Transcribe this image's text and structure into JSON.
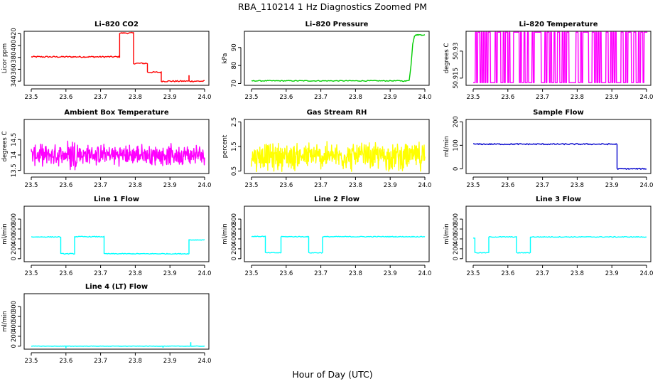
{
  "figure": {
    "title": "RBA_110214  1 Hz Diagnostics Zoomed PM",
    "xlabel": "Hour of Day (UTC)"
  },
  "chart_data": [
    {
      "type": "line",
      "id": "co2",
      "title": "Li–820 CO2",
      "ylabel": "Licor ppm",
      "color": "#ff0000",
      "xlim": [
        23.5,
        24.0
      ],
      "ylim": [
        333,
        424
      ],
      "xticks": [
        23.5,
        23.6,
        23.7,
        23.8,
        23.9,
        24.0
      ],
      "yticks": [
        340,
        360,
        380,
        400,
        420
      ],
      "mode": "steps",
      "noise": 1.2,
      "segments": [
        [
          23.5,
          23.755,
          381
        ],
        [
          23.755,
          23.795,
          421
        ],
        [
          23.795,
          23.835,
          370
        ],
        [
          23.835,
          23.875,
          355
        ],
        [
          23.875,
          24.0,
          340
        ]
      ],
      "spikes": [
        [
          23.955,
          350
        ]
      ]
    },
    {
      "type": "line",
      "id": "pressure",
      "title": "Li–820 Pressure",
      "ylabel": "kPa",
      "color": "#00cc00",
      "xlim": [
        23.5,
        24.0
      ],
      "ylim": [
        69,
        99
      ],
      "xticks": [
        23.5,
        23.6,
        23.7,
        23.8,
        23.9,
        24.0
      ],
      "yticks": [
        70,
        80,
        90
      ],
      "mode": "points",
      "x": [
        23.5,
        23.93,
        23.945,
        23.955,
        23.96,
        23.965,
        23.97,
        23.975,
        23.98,
        23.99,
        24.0
      ],
      "y": [
        71.5,
        71.5,
        71.3,
        72,
        80,
        92,
        96.5,
        97,
        97,
        97,
        97
      ]
    },
    {
      "type": "line",
      "id": "licor_temp",
      "title": "Li–820 Temperature",
      "ylabel": "degrees C",
      "color": "#ff00ff",
      "xlim": [
        23.5,
        24.0
      ],
      "ylim": [
        50.911,
        50.941
      ],
      "xticks": [
        23.5,
        23.6,
        23.7,
        23.8,
        23.9,
        24.0
      ],
      "yticks": [
        50.915,
        50.93
      ],
      "mode": "binary",
      "low": 50.9125,
      "high": 50.9405,
      "switches": 150
    },
    {
      "type": "line",
      "id": "box_temp",
      "title": "Ambient Box Temperature",
      "ylabel": "degrees C",
      "color": "#ff00ff",
      "xlim": [
        23.5,
        24.0
      ],
      "ylim": [
        13.4,
        15.15
      ],
      "xticks": [
        23.5,
        23.6,
        23.7,
        23.8,
        23.9,
        24.0
      ],
      "yticks": [
        13.5,
        14.0,
        14.5
      ],
      "mode": "noise",
      "base": 14.0,
      "amp": 0.32,
      "extra": [
        [
          23.62,
          0.3
        ]
      ]
    },
    {
      "type": "line",
      "id": "rh",
      "title": "Gas Stream RH",
      "ylabel": "percent",
      "color": "#ffff00",
      "xlim": [
        23.5,
        24.0
      ],
      "ylim": [
        0.4,
        2.6
      ],
      "xticks": [
        23.5,
        23.6,
        23.7,
        23.8,
        23.9,
        24.0
      ],
      "yticks": [
        0.5,
        1.5,
        2.5
      ],
      "mode": "noise",
      "base": 1.1,
      "amp": 0.55
    },
    {
      "type": "line",
      "id": "sample_flow",
      "title": "Sample Flow",
      "ylabel": "ml/min",
      "color": "#0000cc",
      "xlim": [
        23.5,
        24.0
      ],
      "ylim": [
        -20,
        210
      ],
      "xticks": [
        23.5,
        23.6,
        23.7,
        23.8,
        23.9,
        24.0
      ],
      "yticks": [
        0,
        100,
        200
      ],
      "mode": "steps",
      "noise": 2.5,
      "segments": [
        [
          23.5,
          23.915,
          105
        ],
        [
          23.915,
          24.0,
          0
        ]
      ]
    },
    {
      "type": "line",
      "id": "line1",
      "title": "Line 1 Flow",
      "ylabel": "ml/min",
      "color": "#00ffff",
      "xlim": [
        23.5,
        24.0
      ],
      "ylim": [
        -60,
        1060
      ],
      "xticks": [
        23.5,
        23.6,
        23.7,
        23.8,
        23.9,
        24.0
      ],
      "yticks": [
        0,
        200,
        400,
        600,
        800
      ],
      "mode": "steps",
      "noise": 8,
      "segments": [
        [
          23.5,
          23.585,
          440
        ],
        [
          23.585,
          23.625,
          100
        ],
        [
          23.625,
          23.71,
          445
        ],
        [
          23.71,
          23.955,
          100
        ],
        [
          23.955,
          24.0,
          380
        ]
      ]
    },
    {
      "type": "line",
      "id": "line2",
      "title": "Line 2 Flow",
      "ylabel": "ml/min",
      "color": "#00ffff",
      "xlim": [
        23.5,
        24.0
      ],
      "ylim": [
        -60,
        1060
      ],
      "xticks": [
        23.5,
        23.6,
        23.7,
        23.8,
        23.9,
        24.0
      ],
      "yticks": [
        0,
        200,
        400,
        600,
        800
      ],
      "mode": "steps",
      "noise": 8,
      "segments": [
        [
          23.5,
          23.54,
          450
        ],
        [
          23.54,
          23.585,
          120
        ],
        [
          23.585,
          23.665,
          445
        ],
        [
          23.665,
          23.705,
          120
        ],
        [
          23.705,
          24.0,
          445
        ]
      ]
    },
    {
      "type": "line",
      "id": "line3",
      "title": "Line 3 Flow",
      "ylabel": "ml/min",
      "color": "#00ffff",
      "xlim": [
        23.5,
        24.0
      ],
      "ylim": [
        -60,
        1060
      ],
      "xticks": [
        23.5,
        23.6,
        23.7,
        23.8,
        23.9,
        24.0
      ],
      "yticks": [
        0,
        200,
        400,
        600,
        800
      ],
      "mode": "steps",
      "noise": 8,
      "segments": [
        [
          23.5,
          23.505,
          420
        ],
        [
          23.505,
          23.545,
          120
        ],
        [
          23.545,
          23.625,
          440
        ],
        [
          23.625,
          23.665,
          120
        ],
        [
          23.665,
          24.0,
          440
        ]
      ]
    },
    {
      "type": "line",
      "id": "line4",
      "title": "Line 4 (LT) Flow",
      "ylabel": "ml/min",
      "color": "#00ffff",
      "xlim": [
        23.5,
        24.0
      ],
      "ylim": [
        -60,
        1060
      ],
      "xticks": [
        23.5,
        23.6,
        23.7,
        23.8,
        23.9,
        24.0
      ],
      "yticks": [
        0,
        200,
        400,
        600,
        800
      ],
      "mode": "steps",
      "noise": 4,
      "segments": [
        [
          23.5,
          24.0,
          0
        ]
      ],
      "spikes": [
        [
          23.96,
          80
        ],
        [
          23.6,
          -40
        ],
        [
          23.88,
          -30
        ]
      ]
    }
  ]
}
